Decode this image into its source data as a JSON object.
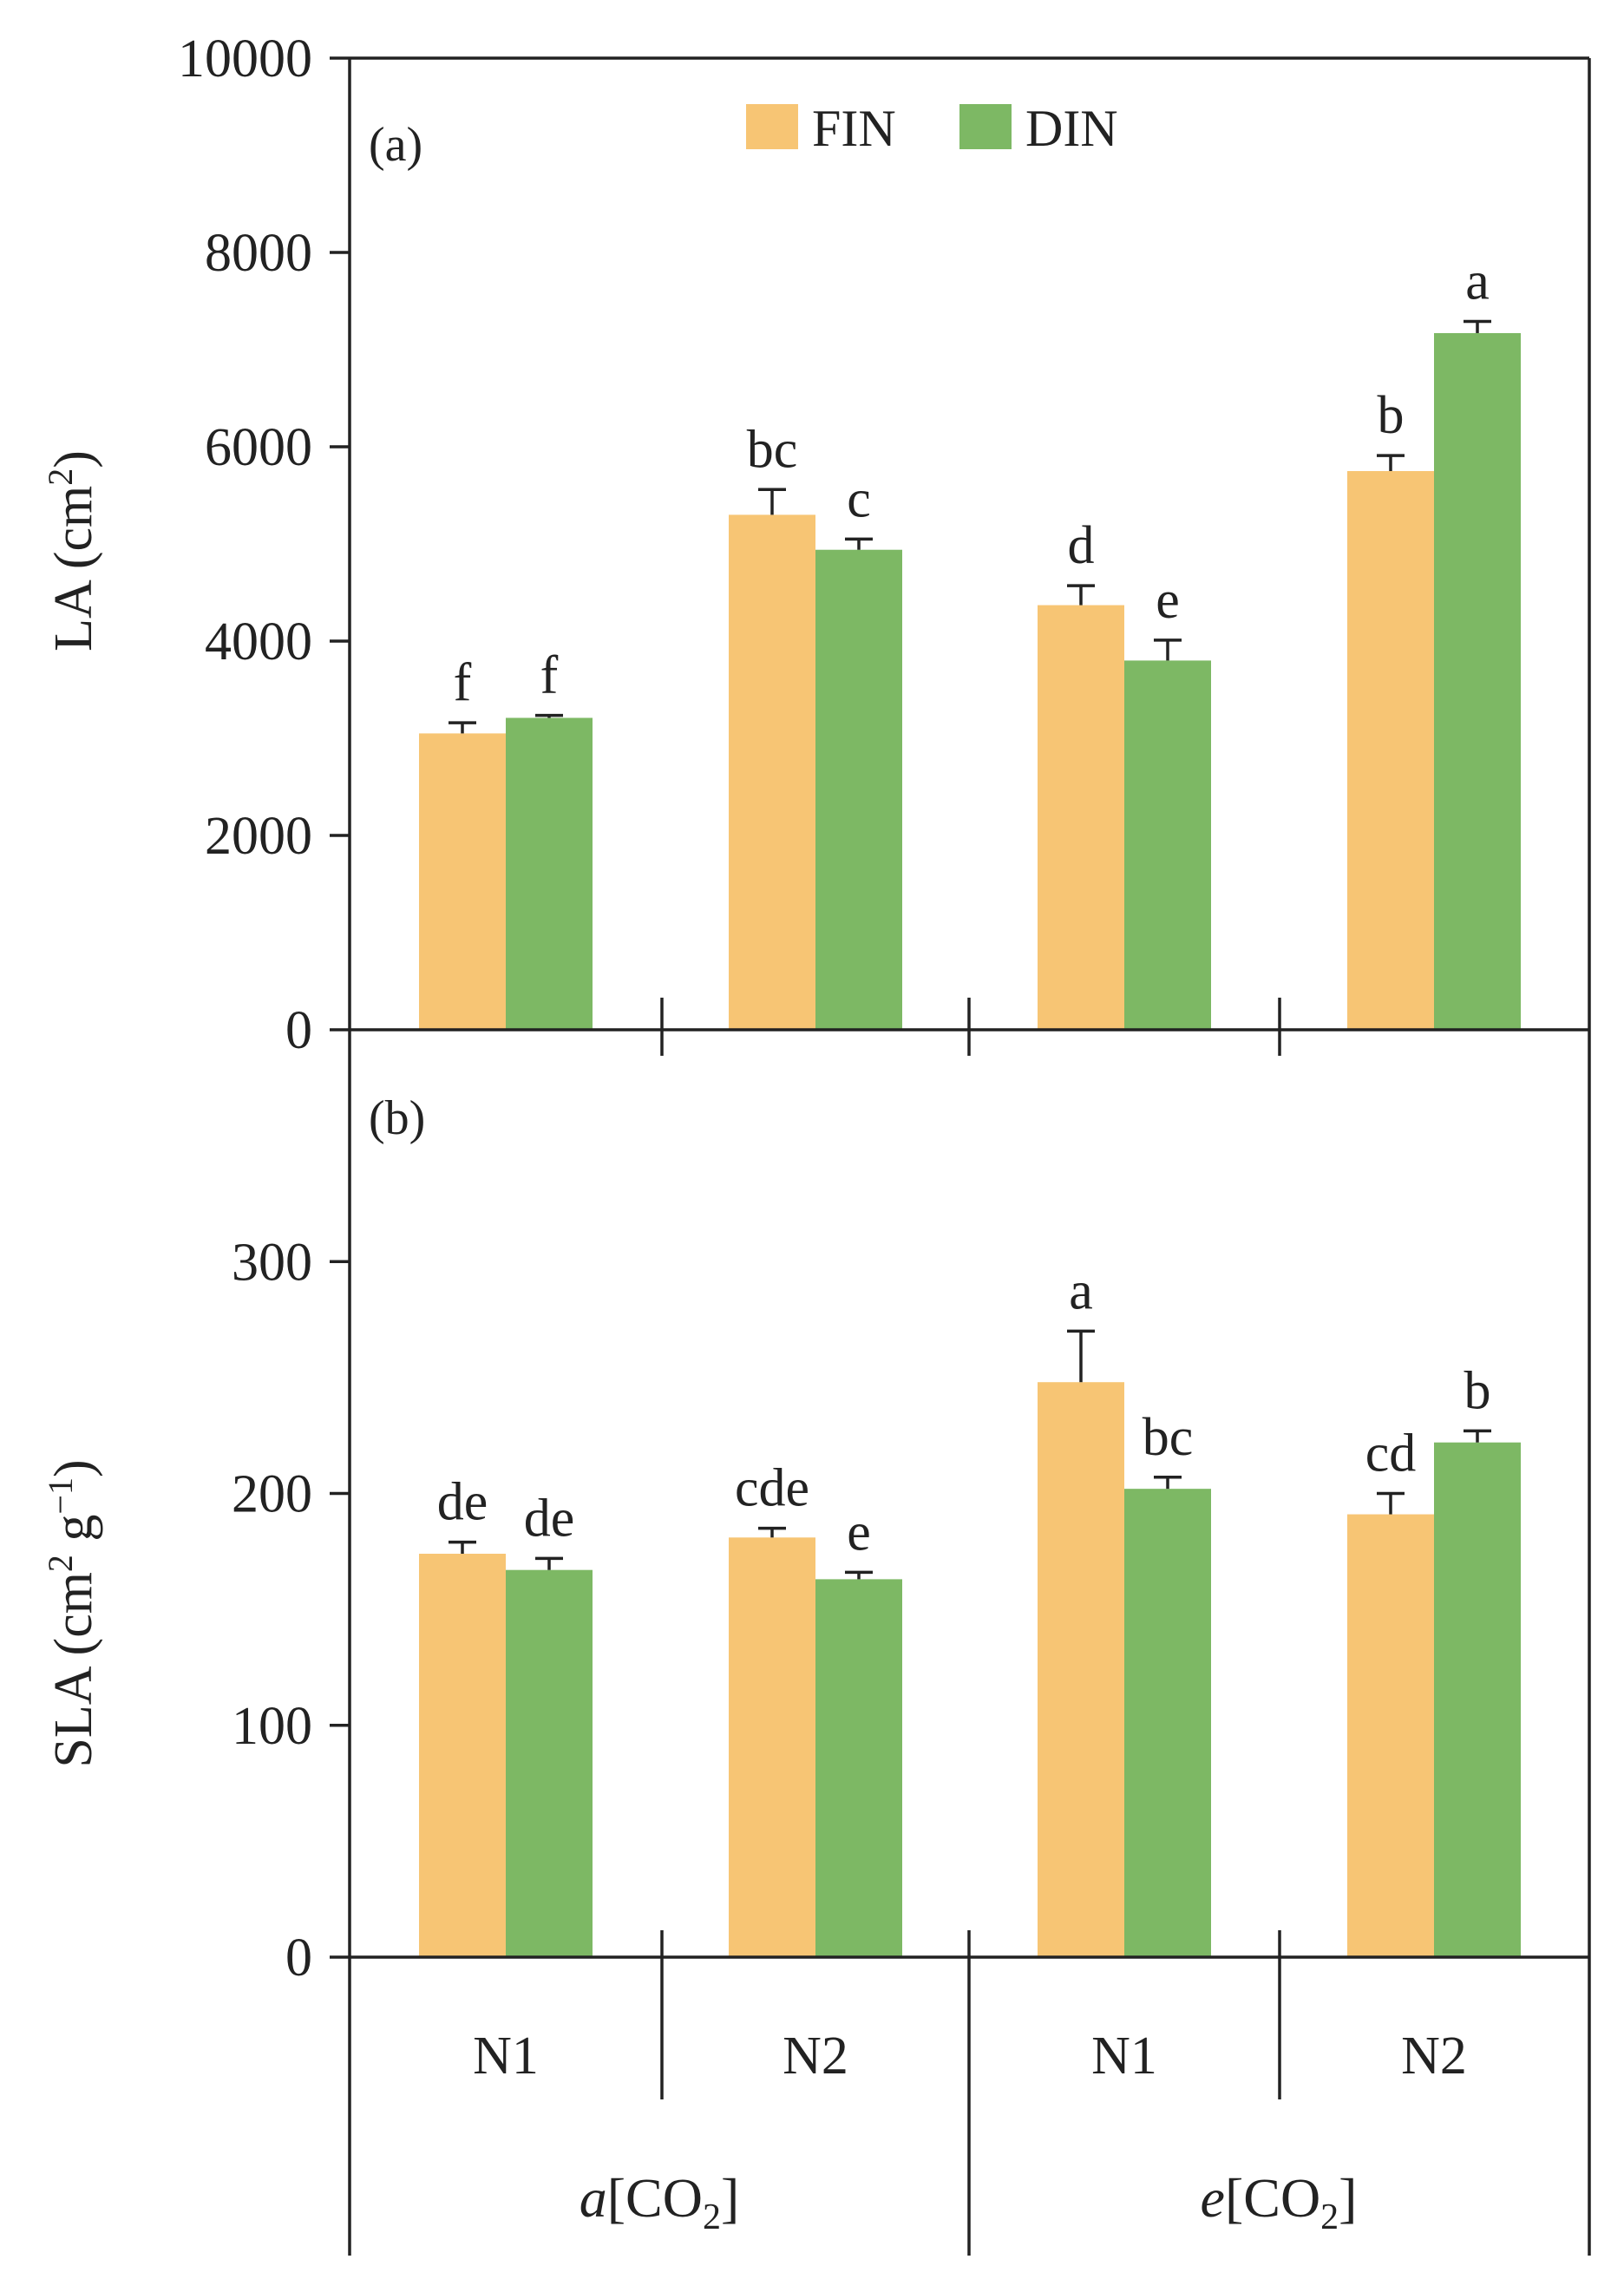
{
  "colors": {
    "fin": "#F7C574",
    "din": "#7DB864",
    "axis": "#222222",
    "text": "#222222"
  },
  "legend": [
    {
      "key": "fin",
      "label": "FIN"
    },
    {
      "key": "din",
      "label": "DIN"
    }
  ],
  "x_axis": {
    "categories": [
      "N1",
      "N2",
      "N1",
      "N2"
    ],
    "groups": [
      {
        "prefix": "a",
        "bracket_open": "[CO",
        "subscript": "2",
        "bracket_close": "]"
      },
      {
        "prefix": "e",
        "bracket_open": "[CO",
        "subscript": "2",
        "bracket_close": "]"
      }
    ]
  },
  "chart_data": [
    {
      "type": "bar",
      "panel_label": "(a)",
      "ylabel": {
        "main": "LA (cm",
        "sup": "2",
        "close": ")"
      },
      "ylim": [
        0,
        10000
      ],
      "yticks": [
        "0",
        "2000",
        "4000",
        "6000",
        "8000",
        "10000"
      ],
      "tick_values": [
        0,
        2000,
        4000,
        6000,
        8000,
        10000
      ],
      "categories": [
        "N1",
        "N2",
        "N1",
        "N2"
      ],
      "series": [
        {
          "name": "FIN",
          "key": "fin",
          "values": [
            3050,
            5300,
            4370,
            5750
          ],
          "errors": [
            110,
            260,
            200,
            160
          ],
          "letters": [
            "f",
            "bc",
            "d",
            "b"
          ]
        },
        {
          "name": "DIN",
          "key": "din",
          "values": [
            3210,
            4940,
            3800,
            7170
          ],
          "errors": [
            25,
            110,
            210,
            120
          ],
          "letters": [
            "f",
            "c",
            "e",
            "a"
          ]
        }
      ]
    },
    {
      "type": "bar",
      "panel_label": "(b)",
      "ylabel": {
        "main": "SLA (cm",
        "sup1": "2",
        "mid": " g",
        "sup2": "−1",
        "close": ")"
      },
      "ylim": [
        0,
        400
      ],
      "yticks": [
        "0",
        "100",
        "200",
        "300"
      ],
      "tick_values": [
        0,
        100,
        200,
        300
      ],
      "categories": [
        "N1",
        "N2",
        "N1",
        "N2"
      ],
      "series": [
        {
          "name": "FIN",
          "key": "fin",
          "values": [
            174,
            181,
            248,
            191
          ],
          "errors": [
            5,
            4,
            22,
            9
          ],
          "letters": [
            "de",
            "cde",
            "a",
            "cd"
          ]
        },
        {
          "name": "DIN",
          "key": "din",
          "values": [
            167,
            163,
            202,
            222
          ],
          "errors": [
            5,
            3,
            5,
            5
          ],
          "letters": [
            "de",
            "e",
            "bc",
            "b"
          ]
        }
      ]
    }
  ]
}
